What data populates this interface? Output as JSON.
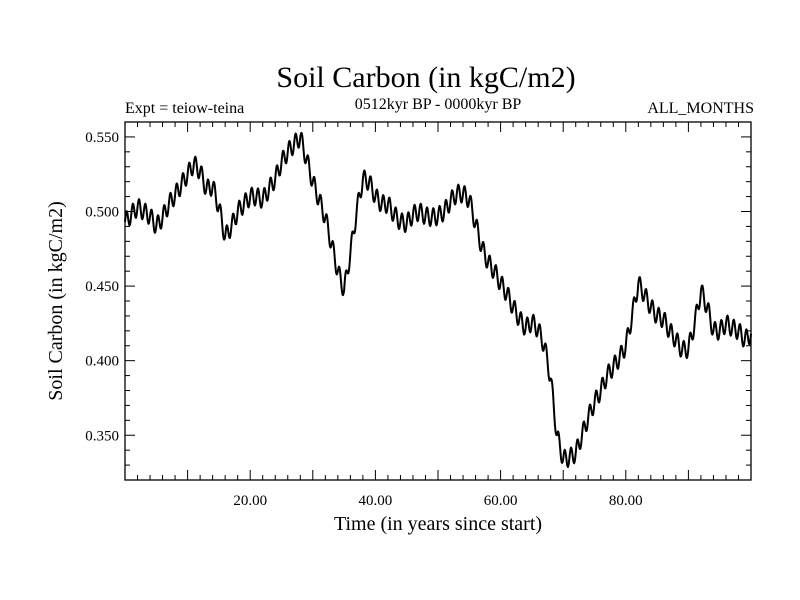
{
  "chart_data": {
    "type": "line",
    "title": "Soil Carbon (in kgC/m2)",
    "subtitle_left": "Expt = teiow-teina",
    "subtitle_center": "0512kyr BP - 0000kyr BP",
    "subtitle_right": "ALL_MONTHS",
    "xlabel": "Time (in years since start)",
    "ylabel": "Soil Carbon (in kgC/m2)",
    "xlim": [
      0,
      100
    ],
    "ylim": [
      0.32,
      0.56
    ],
    "xticks": [
      20,
      40,
      60,
      80
    ],
    "xtick_labels": [
      "20.00",
      "40.00",
      "60.00",
      "80.00"
    ],
    "yticks": [
      0.35,
      0.4,
      0.45,
      0.5,
      0.55
    ],
    "ytick_labels": [
      "0.350",
      "0.400",
      "0.450",
      "0.500",
      "0.550"
    ],
    "grid": false,
    "line_color": "#000000",
    "seasonal_amplitude": 0.006,
    "series": [
      {
        "name": "Soil Carbon",
        "x": [
          0,
          1,
          2,
          3,
          4,
          5,
          6,
          7,
          8,
          9,
          10,
          11,
          12,
          13,
          14,
          15,
          16,
          17,
          18,
          19,
          20,
          21,
          22,
          23,
          24,
          25,
          26,
          27,
          28,
          29,
          30,
          31,
          32,
          33,
          34,
          35,
          36,
          37,
          38,
          39,
          40,
          41,
          42,
          43,
          44,
          45,
          46,
          47,
          48,
          49,
          50,
          51,
          52,
          53,
          54,
          55,
          56,
          57,
          58,
          59,
          60,
          61,
          62,
          63,
          64,
          65,
          66,
          67,
          68,
          69,
          70,
          71,
          72,
          73,
          74,
          75,
          76,
          77,
          78,
          79,
          80,
          81,
          82,
          83,
          84,
          85,
          86,
          87,
          88,
          89,
          90,
          91,
          92,
          93,
          94,
          95,
          96,
          97,
          98,
          99,
          100
        ],
        "values": [
          0.493,
          0.498,
          0.503,
          0.5,
          0.497,
          0.49,
          0.496,
          0.505,
          0.511,
          0.518,
          0.525,
          0.532,
          0.527,
          0.515,
          0.517,
          0.503,
          0.483,
          0.49,
          0.5,
          0.505,
          0.51,
          0.51,
          0.508,
          0.515,
          0.522,
          0.533,
          0.54,
          0.545,
          0.55,
          0.535,
          0.52,
          0.508,
          0.496,
          0.478,
          0.46,
          0.447,
          0.472,
          0.5,
          0.522,
          0.52,
          0.51,
          0.505,
          0.505,
          0.498,
          0.493,
          0.492,
          0.498,
          0.5,
          0.497,
          0.496,
          0.497,
          0.5,
          0.507,
          0.512,
          0.512,
          0.508,
          0.492,
          0.476,
          0.466,
          0.46,
          0.452,
          0.445,
          0.436,
          0.428,
          0.422,
          0.426,
          0.421,
          0.41,
          0.388,
          0.35,
          0.334,
          0.335,
          0.338,
          0.35,
          0.362,
          0.372,
          0.38,
          0.39,
          0.396,
          0.402,
          0.41,
          0.43,
          0.452,
          0.444,
          0.436,
          0.43,
          0.428,
          0.42,
          0.414,
          0.407,
          0.408,
          0.425,
          0.447,
          0.436,
          0.42,
          0.42,
          0.425,
          0.422,
          0.42,
          0.414,
          0.418
        ]
      }
    ]
  }
}
